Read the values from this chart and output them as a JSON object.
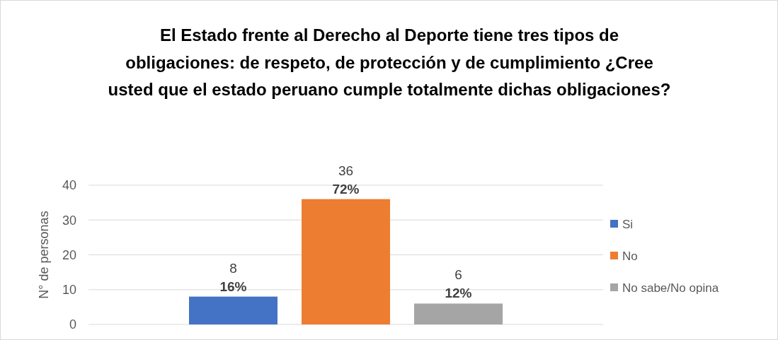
{
  "chart_data": {
    "type": "bar",
    "title": "El Estado frente al Derecho al Deporte tiene tres tipos de obligaciones: de respeto, de protección y de cumplimiento ¿Cree usted que el estado peruano cumple totalmente dichas obligaciones?",
    "ylabel": "N° de personas",
    "categories": [
      null
    ],
    "series": [
      {
        "name": "Si",
        "color": "#4472c4",
        "values": [
          8
        ],
        "value_labels": [
          "8\n16%"
        ]
      },
      {
        "name": "No",
        "color": "#ed7d31",
        "values": [
          36
        ],
        "value_labels": [
          "36\n72%"
        ]
      },
      {
        "name": "No sabe/No opina",
        "color": "#a5a5a5",
        "values": [
          6
        ],
        "value_labels": [
          "6\n12%"
        ]
      }
    ],
    "ylim": [
      0,
      40
    ],
    "yticks": [
      0,
      10,
      20,
      30,
      40
    ],
    "grid": "y",
    "legend": "right"
  }
}
